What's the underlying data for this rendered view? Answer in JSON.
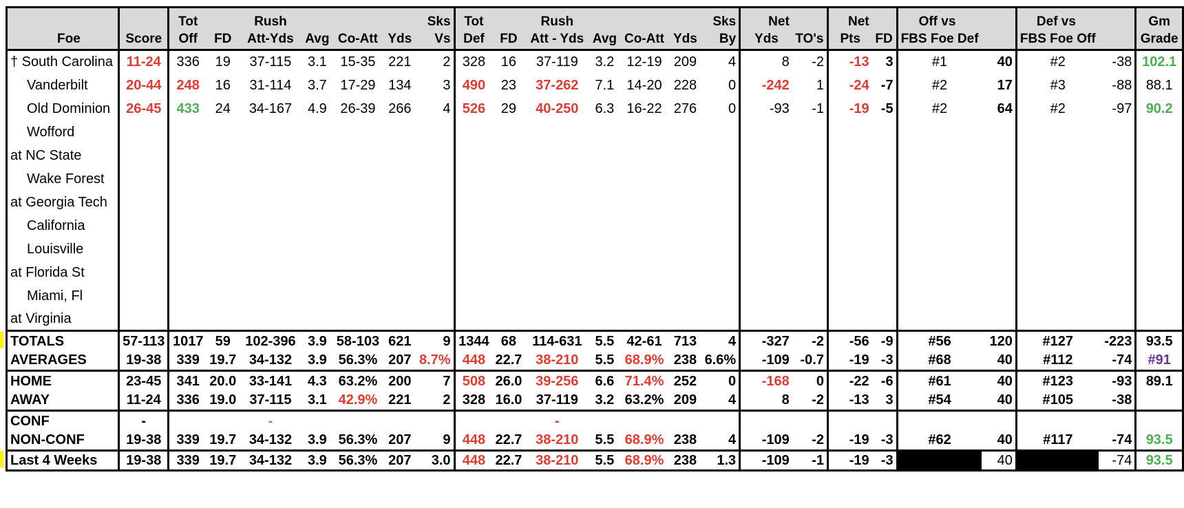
{
  "headers": {
    "row1": [
      "",
      "",
      "Tot",
      "",
      "Rush",
      "",
      "",
      "",
      "Sks",
      "Tot",
      "",
      "Rush",
      "",
      "",
      "",
      "Sks",
      "Net",
      "",
      "Net",
      "",
      "Off vs",
      "",
      "Def vs",
      "",
      "Gm"
    ],
    "row2": [
      "Foe",
      "Score",
      "Off",
      "FD",
      "Att-Yds",
      "Avg",
      "Co-Att",
      "Yds",
      "Vs",
      "Def",
      "FD",
      "Att - Yds",
      "Avg",
      "Co-Att",
      "Yds",
      "By",
      "Yds",
      "TO's",
      "Pts",
      "FD",
      "FBS Foe Def",
      "",
      "FBS Foe Off",
      "",
      "Grade"
    ]
  },
  "games": [
    {
      "foe": "† South Carolina",
      "indent": false,
      "cells": [
        "11-24",
        "336",
        "19",
        "37-115",
        "3.1",
        "15-35",
        "221",
        "2",
        "328",
        "16",
        "37-119",
        "3.2",
        "12-19",
        "209",
        "4",
        "8",
        "-2",
        "-13",
        "3",
        "#1",
        "40",
        "#2",
        "-38",
        "102.1"
      ]
    },
    {
      "foe": "Vanderbilt",
      "indent": true,
      "cells": [
        "20-44",
        "248",
        "16",
        "31-114",
        "3.7",
        "17-29",
        "134",
        "3",
        "490",
        "23",
        "37-262",
        "7.1",
        "14-20",
        "228",
        "0",
        "-242",
        "1",
        "-24",
        "-7",
        "#2",
        "17",
        "#3",
        "-88",
        "88.1"
      ]
    },
    {
      "foe": "Old Dominion",
      "indent": true,
      "cells": [
        "26-45",
        "433",
        "24",
        "34-167",
        "4.9",
        "26-39",
        "266",
        "4",
        "526",
        "29",
        "40-250",
        "6.3",
        "16-22",
        "276",
        "0",
        "-93",
        "-1",
        "-19",
        "-5",
        "#2",
        "64",
        "#2",
        "-97",
        "90.2"
      ]
    },
    {
      "foe": "Wofford",
      "indent": true,
      "cells": []
    },
    {
      "foe": "at NC State",
      "indent": false,
      "cells": []
    },
    {
      "foe": "Wake Forest",
      "indent": true,
      "cells": []
    },
    {
      "foe": "at Georgia Tech",
      "indent": false,
      "cells": []
    },
    {
      "foe": "California",
      "indent": true,
      "cells": []
    },
    {
      "foe": "Louisville",
      "indent": true,
      "cells": []
    },
    {
      "foe": "at Florida St",
      "indent": false,
      "cells": []
    },
    {
      "foe": "Miami, Fl",
      "indent": true,
      "cells": []
    },
    {
      "foe": "at Virginia",
      "indent": false,
      "cells": []
    }
  ],
  "summary": [
    {
      "label": "TOTALS",
      "cells": [
        "57-113",
        "1017",
        "59",
        "102-396",
        "3.9",
        "58-103",
        "621",
        "9",
        "1344",
        "68",
        "114-631",
        "5.5",
        "42-61",
        "713",
        "4",
        "-327",
        "-2",
        "-56",
        "-9",
        "#56",
        "120",
        "#127",
        "-223",
        "93.5"
      ]
    },
    {
      "label": "AVERAGES",
      "cells": [
        "19-38",
        "339",
        "19.7",
        "34-132",
        "3.9",
        "56.3%",
        "207",
        "8.7%",
        "448",
        "22.7",
        "38-210",
        "5.5",
        "68.9%",
        "238",
        "6.6%",
        "-109",
        "-0.7",
        "-19",
        "-3",
        "#68",
        "40",
        "#112",
        "-74",
        "#91"
      ]
    },
    {
      "label": "HOME",
      "cells": [
        "23-45",
        "341",
        "20.0",
        "33-141",
        "4.3",
        "63.2%",
        "200",
        "7",
        "508",
        "26.0",
        "39-256",
        "6.6",
        "71.4%",
        "252",
        "0",
        "-168",
        "0",
        "-22",
        "-6",
        "#61",
        "40",
        "#123",
        "-93",
        "89.1"
      ]
    },
    {
      "label": "AWAY",
      "cells": [
        "11-24",
        "336",
        "19.0",
        "37-115",
        "3.1",
        "42.9%",
        "221",
        "2",
        "328",
        "16.0",
        "37-119",
        "3.2",
        "63.2%",
        "209",
        "4",
        "8",
        "-2",
        "-13",
        "3",
        "#54",
        "40",
        "#105",
        "-38",
        ""
      ]
    },
    {
      "label": "CONF",
      "cells": [
        "-",
        "",
        "",
        "-",
        "",
        "",
        "",
        "",
        "",
        "",
        "-",
        "",
        "",
        "",
        "",
        "",
        "",
        "",
        "",
        "",
        "",
        "",
        "",
        ""
      ]
    },
    {
      "label": "NON-CONF",
      "cells": [
        "19-38",
        "339",
        "19.7",
        "34-132",
        "3.9",
        "56.3%",
        "207",
        "9",
        "448",
        "22.7",
        "38-210",
        "5.5",
        "68.9%",
        "238",
        "4",
        "-109",
        "-2",
        "-19",
        "-3",
        "#62",
        "40",
        "#117",
        "-74",
        "93.5"
      ]
    },
    {
      "label": "Last 4 Weeks",
      "cells": [
        "19-38",
        "339",
        "19.7",
        "34-132",
        "3.9",
        "56.3%",
        "207",
        "3.0",
        "448",
        "22.7",
        "38-210",
        "5.5",
        "68.9%",
        "238",
        "1.3",
        "-109",
        "-1",
        "-19",
        "-3",
        "",
        "40",
        "",
        "-74",
        "93.5"
      ]
    }
  ],
  "colors": {
    "red": "#e03c31",
    "green": "#4caf50",
    "purple": "#7030a0",
    "header_bg": "#d9d9d9"
  }
}
